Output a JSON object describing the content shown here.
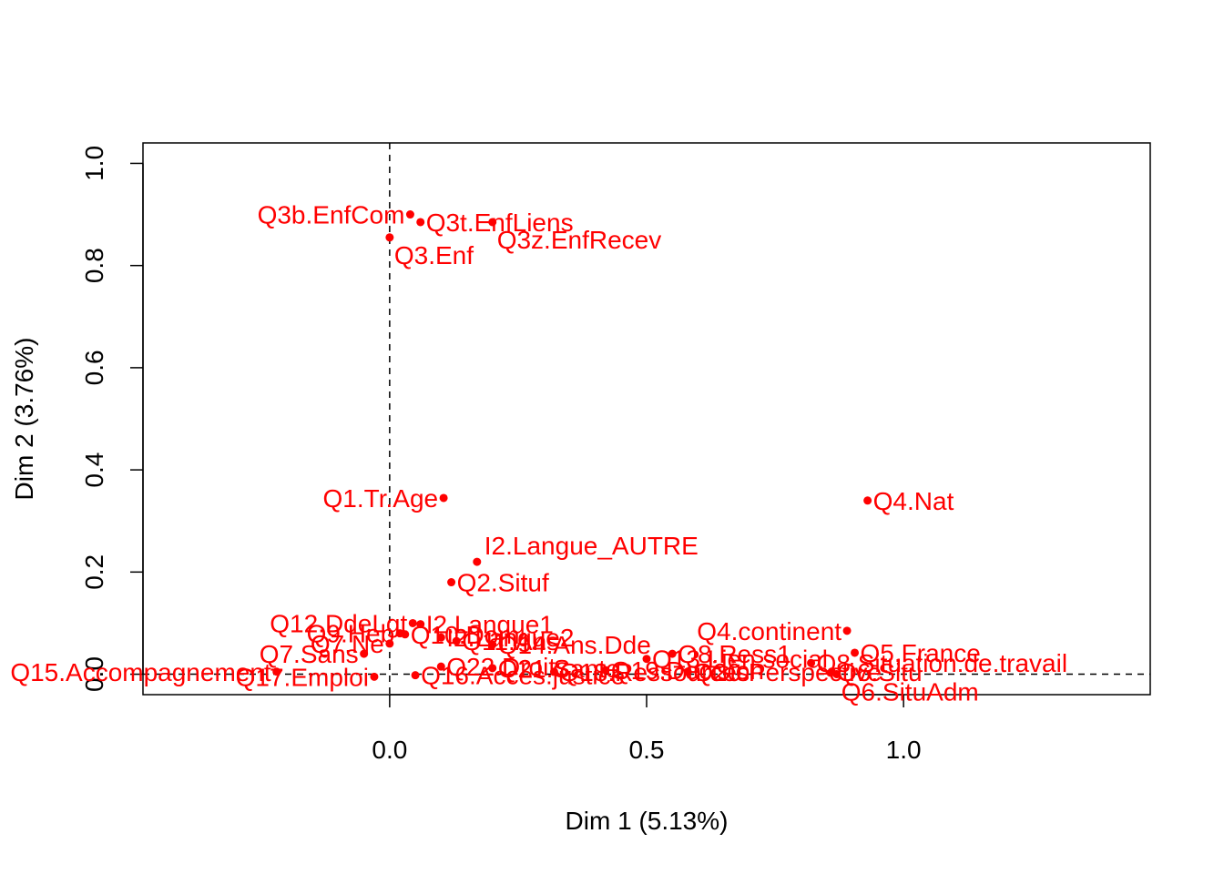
{
  "chart_data": {
    "type": "scatter",
    "title": "",
    "xlabel": "Dim 1 (5.13%)",
    "ylabel": "Dim 2 (3.76%)",
    "xlim": [
      -0.48,
      1.48
    ],
    "ylim": [
      -0.04,
      1.04
    ],
    "xticks": [
      "0.0",
      "0.5",
      "1.0"
    ],
    "xtick_values": [
      0.0,
      0.5,
      1.0
    ],
    "yticks": [
      "0.0",
      "0.2",
      "0.4",
      "0.6",
      "0.8",
      "1.0"
    ],
    "ytick_values": [
      0.0,
      0.2,
      0.4,
      0.6,
      0.8,
      1.0
    ],
    "reference_lines": {
      "x": 0,
      "y": 0,
      "style": "dashed"
    },
    "point_color": "#ff0000",
    "grid": false,
    "points": [
      {
        "label": "Q3b.EnfCom",
        "x": 0.04,
        "y": 0.9,
        "pos": "left"
      },
      {
        "label": "Q3t.EnfLiens",
        "x": 0.06,
        "y": 0.885,
        "pos": "right"
      },
      {
        "label": "Q3z.EnfRecev",
        "x": 0.2,
        "y": 0.885,
        "pos": "below-right"
      },
      {
        "label": "Q3.Enf",
        "x": 0.0,
        "y": 0.855,
        "pos": "below-right"
      },
      {
        "label": "Q1.Tr.Age",
        "x": 0.105,
        "y": 0.345,
        "pos": "left"
      },
      {
        "label": "Q4.Nat",
        "x": 0.93,
        "y": 0.34,
        "pos": "right"
      },
      {
        "label": "I2.Langue_AUTRE",
        "x": 0.17,
        "y": 0.22,
        "pos": "above-right"
      },
      {
        "label": "Q2.Situf",
        "x": 0.12,
        "y": 0.18,
        "pos": "right"
      },
      {
        "label": "Q12.DdeLgt",
        "x": 0.045,
        "y": 0.1,
        "pos": "left"
      },
      {
        "label": "I2.Langue1",
        "x": 0.06,
        "y": 0.098,
        "pos": "right"
      },
      {
        "label": "Q4.continent",
        "x": 0.89,
        "y": 0.085,
        "pos": "left"
      },
      {
        "label": "Q9.Heb",
        "x": 0.02,
        "y": 0.08,
        "pos": "left"
      },
      {
        "label": "Q10.Dom",
        "x": 0.03,
        "y": 0.078,
        "pos": "right"
      },
      {
        "label": "I2.Langue2",
        "x": 0.1,
        "y": 0.072,
        "pos": "right"
      },
      {
        "label": "Q5.France",
        "x": 0.905,
        "y": 0.042,
        "pos": "right"
      },
      {
        "label": "Q7.Ne",
        "x": 0.0,
        "y": 0.06,
        "pos": "left"
      },
      {
        "label": "Q11.Ans",
        "x": 0.13,
        "y": 0.065,
        "pos": "right"
      },
      {
        "label": "Q14.Ans.Dde",
        "x": 0.2,
        "y": 0.058,
        "pos": "right"
      },
      {
        "label": "Q8.Ress1",
        "x": 0.55,
        "y": 0.04,
        "pos": "right"
      },
      {
        "label": "Q7.Sans",
        "x": -0.05,
        "y": 0.04,
        "pos": "left"
      },
      {
        "label": "Q13.Lien.social",
        "x": 0.5,
        "y": 0.03,
        "pos": "right"
      },
      {
        "label": "Q8.Situation.de.travail",
        "x": 0.82,
        "y": 0.022,
        "pos": "right"
      },
      {
        "label": "Q15.Accompagnement",
        "x": -0.22,
        "y": 0.005,
        "pos": "left"
      },
      {
        "label": "Q6.Situ",
        "x": 0.86,
        "y": 0.005,
        "pos": "right"
      },
      {
        "label": "Q6.SituAdm",
        "x": 0.87,
        "y": 0.0,
        "pos": "below-right"
      },
      {
        "label": "Q17.Emploi",
        "x": -0.03,
        "y": -0.005,
        "pos": "left"
      },
      {
        "label": "Q16.Acces.justice",
        "x": 0.05,
        "y": -0.002,
        "pos": "right"
      },
      {
        "label": "Q18.Ressources",
        "x": 0.32,
        "y": 0.005,
        "pos": "right"
      },
      {
        "label": "Q19.Decision",
        "x": 0.42,
        "y": 0.008,
        "pos": "right"
      },
      {
        "label": "Q20.Perspective",
        "x": 0.58,
        "y": 0.005,
        "pos": "right"
      },
      {
        "label": "Q21.Sante",
        "x": 0.2,
        "y": 0.012,
        "pos": "right"
      },
      {
        "label": "Q22.Droits",
        "x": 0.1,
        "y": 0.015,
        "pos": "right"
      }
    ]
  }
}
